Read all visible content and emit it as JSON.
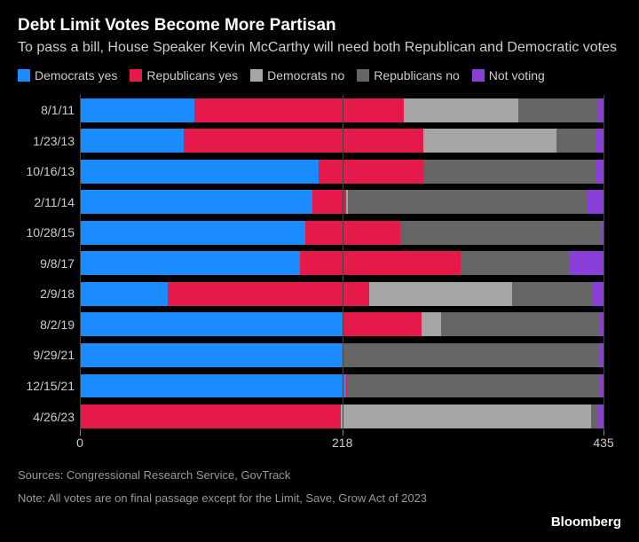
{
  "title": "Debt Limit Votes Become More Partisan",
  "subtitle": "To pass a bill, House Speaker Kevin McCarthy will need both Republican and Democratic votes",
  "legend": [
    {
      "label": "Democrats yes",
      "color": "#1a8cff"
    },
    {
      "label": "Republicans yes",
      "color": "#e6194b"
    },
    {
      "label": "Democrats no",
      "color": "#a6a6a6"
    },
    {
      "label": "Republicans no",
      "color": "#666666"
    },
    {
      "label": "Not voting",
      "color": "#8b3fd9"
    }
  ],
  "chart": {
    "type": "stacked-bar-horizontal",
    "xmax": 435,
    "xticks": [
      0,
      218,
      435
    ],
    "background_color": "#000000",
    "grid_color": "#444444",
    "label_color": "#cccccc",
    "label_fontsize": 14,
    "bar_height_ratio": 0.78,
    "segment_keys": [
      "dem_yes",
      "rep_yes",
      "dem_no",
      "rep_no",
      "not_voting"
    ],
    "segment_colors": {
      "dem_yes": "#1a8cff",
      "rep_yes": "#e6194b",
      "dem_no": "#a6a6a6",
      "rep_no": "#666666",
      "not_voting": "#8b3fd9"
    },
    "rows": [
      {
        "date": "8/1/11",
        "dem_yes": 95,
        "rep_yes": 174,
        "dem_no": 95,
        "rep_no": 66,
        "not_voting": 5
      },
      {
        "date": "1/23/13",
        "dem_yes": 86,
        "rep_yes": 199,
        "dem_no": 111,
        "rep_no": 33,
        "not_voting": 6
      },
      {
        "date": "10/16/13",
        "dem_yes": 198,
        "rep_yes": 87,
        "dem_no": 0,
        "rep_no": 144,
        "not_voting": 6
      },
      {
        "date": "2/11/14",
        "dem_yes": 193,
        "rep_yes": 28,
        "dem_no": 2,
        "rep_no": 199,
        "not_voting": 13
      },
      {
        "date": "10/28/15",
        "dem_yes": 187,
        "rep_yes": 79,
        "dem_no": 0,
        "rep_no": 167,
        "not_voting": 2
      },
      {
        "date": "9/8/17",
        "dem_yes": 183,
        "rep_yes": 133,
        "dem_no": 0,
        "rep_no": 90,
        "not_voting": 29
      },
      {
        "date": "2/9/18",
        "dem_yes": 73,
        "rep_yes": 167,
        "dem_no": 119,
        "rep_no": 67,
        "not_voting": 9
      },
      {
        "date": "8/2/19",
        "dem_yes": 219,
        "rep_yes": 65,
        "dem_no": 16,
        "rep_no": 132,
        "not_voting": 3
      },
      {
        "date": "9/29/21",
        "dem_yes": 219,
        "rep_yes": 0,
        "dem_no": 0,
        "rep_no": 212,
        "not_voting": 4
      },
      {
        "date": "12/15/21",
        "dem_yes": 221,
        "rep_yes": 1,
        "dem_no": 0,
        "rep_no": 209,
        "not_voting": 4
      },
      {
        "date": "4/26/23",
        "dem_yes": 0,
        "rep_yes": 217,
        "dem_no": 208,
        "rep_no": 5,
        "not_voting": 5
      }
    ]
  },
  "sources": "Sources: Congressional Research Service, GovTrack",
  "note": "Note: All votes are on final passage except for the Limit, Save, Grow Act of 2023",
  "brand": "Bloomberg"
}
